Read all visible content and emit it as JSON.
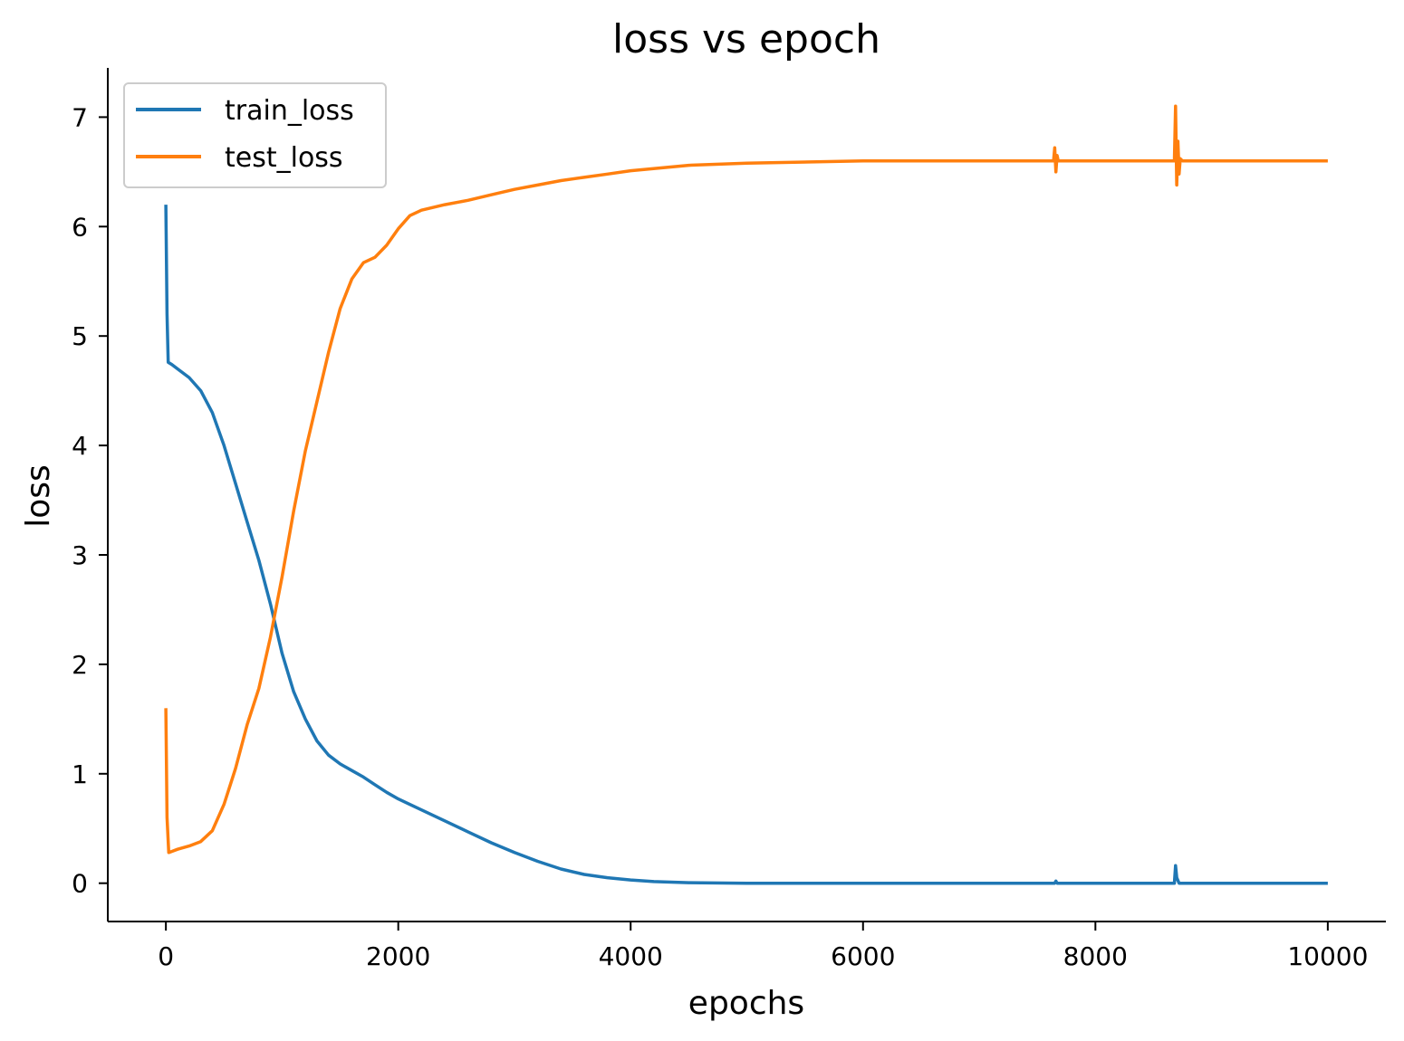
{
  "chart_data": {
    "type": "line",
    "title": "loss vs epoch",
    "xlabel": "epochs",
    "ylabel": "loss",
    "xlim": [
      -500,
      10500
    ],
    "ylim": [
      -0.35,
      7.45
    ],
    "xticks": [
      0,
      2000,
      4000,
      6000,
      8000,
      10000
    ],
    "yticks": [
      0,
      1,
      2,
      3,
      4,
      5,
      6,
      7
    ],
    "grid": false,
    "legend": "top-left",
    "series": [
      {
        "name": "train_loss",
        "color": "#1f77b4",
        "points": [
          [
            0,
            6.2
          ],
          [
            10,
            5.2
          ],
          [
            20,
            4.76
          ],
          [
            50,
            4.74
          ],
          [
            100,
            4.7
          ],
          [
            200,
            4.62
          ],
          [
            300,
            4.5
          ],
          [
            400,
            4.3
          ],
          [
            500,
            4.0
          ],
          [
            600,
            3.65
          ],
          [
            700,
            3.3
          ],
          [
            800,
            2.95
          ],
          [
            900,
            2.55
          ],
          [
            1000,
            2.1
          ],
          [
            1100,
            1.75
          ],
          [
            1200,
            1.5
          ],
          [
            1300,
            1.3
          ],
          [
            1400,
            1.17
          ],
          [
            1500,
            1.09
          ],
          [
            1600,
            1.03
          ],
          [
            1700,
            0.97
          ],
          [
            1800,
            0.9
          ],
          [
            1900,
            0.83
          ],
          [
            2000,
            0.77
          ],
          [
            2200,
            0.67
          ],
          [
            2400,
            0.57
          ],
          [
            2600,
            0.47
          ],
          [
            2800,
            0.37
          ],
          [
            3000,
            0.28
          ],
          [
            3200,
            0.2
          ],
          [
            3400,
            0.13
          ],
          [
            3600,
            0.08
          ],
          [
            3800,
            0.05
          ],
          [
            4000,
            0.03
          ],
          [
            4200,
            0.015
          ],
          [
            4500,
            0.005
          ],
          [
            5000,
            0.0
          ],
          [
            7650,
            0.0
          ],
          [
            7660,
            0.02
          ],
          [
            7670,
            0.0
          ],
          [
            8680,
            0.0
          ],
          [
            8690,
            0.16
          ],
          [
            8700,
            0.05
          ],
          [
            8720,
            0.0
          ],
          [
            10000,
            0.0
          ]
        ]
      },
      {
        "name": "test_loss",
        "color": "#ff7f0e",
        "points": [
          [
            0,
            1.6
          ],
          [
            10,
            0.6
          ],
          [
            25,
            0.28
          ],
          [
            50,
            0.29
          ],
          [
            100,
            0.31
          ],
          [
            200,
            0.34
          ],
          [
            300,
            0.38
          ],
          [
            400,
            0.48
          ],
          [
            500,
            0.72
          ],
          [
            600,
            1.05
          ],
          [
            700,
            1.45
          ],
          [
            800,
            1.78
          ],
          [
            900,
            2.25
          ],
          [
            1000,
            2.8
          ],
          [
            1100,
            3.4
          ],
          [
            1200,
            3.95
          ],
          [
            1300,
            4.4
          ],
          [
            1400,
            4.85
          ],
          [
            1500,
            5.25
          ],
          [
            1600,
            5.52
          ],
          [
            1700,
            5.67
          ],
          [
            1800,
            5.72
          ],
          [
            1900,
            5.83
          ],
          [
            2000,
            5.98
          ],
          [
            2100,
            6.1
          ],
          [
            2200,
            6.15
          ],
          [
            2400,
            6.2
          ],
          [
            2600,
            6.24
          ],
          [
            2800,
            6.29
          ],
          [
            3000,
            6.34
          ],
          [
            3200,
            6.38
          ],
          [
            3400,
            6.42
          ],
          [
            3600,
            6.45
          ],
          [
            3800,
            6.48
          ],
          [
            4000,
            6.51
          ],
          [
            4500,
            6.56
          ],
          [
            5000,
            6.58
          ],
          [
            6000,
            6.6
          ],
          [
            7000,
            6.6
          ],
          [
            7640,
            6.6
          ],
          [
            7650,
            6.72
          ],
          [
            7660,
            6.5
          ],
          [
            7670,
            6.65
          ],
          [
            7680,
            6.6
          ],
          [
            8680,
            6.6
          ],
          [
            8690,
            7.1
          ],
          [
            8700,
            6.38
          ],
          [
            8710,
            6.78
          ],
          [
            8720,
            6.48
          ],
          [
            8730,
            6.62
          ],
          [
            8750,
            6.6
          ],
          [
            10000,
            6.6
          ]
        ]
      }
    ]
  }
}
